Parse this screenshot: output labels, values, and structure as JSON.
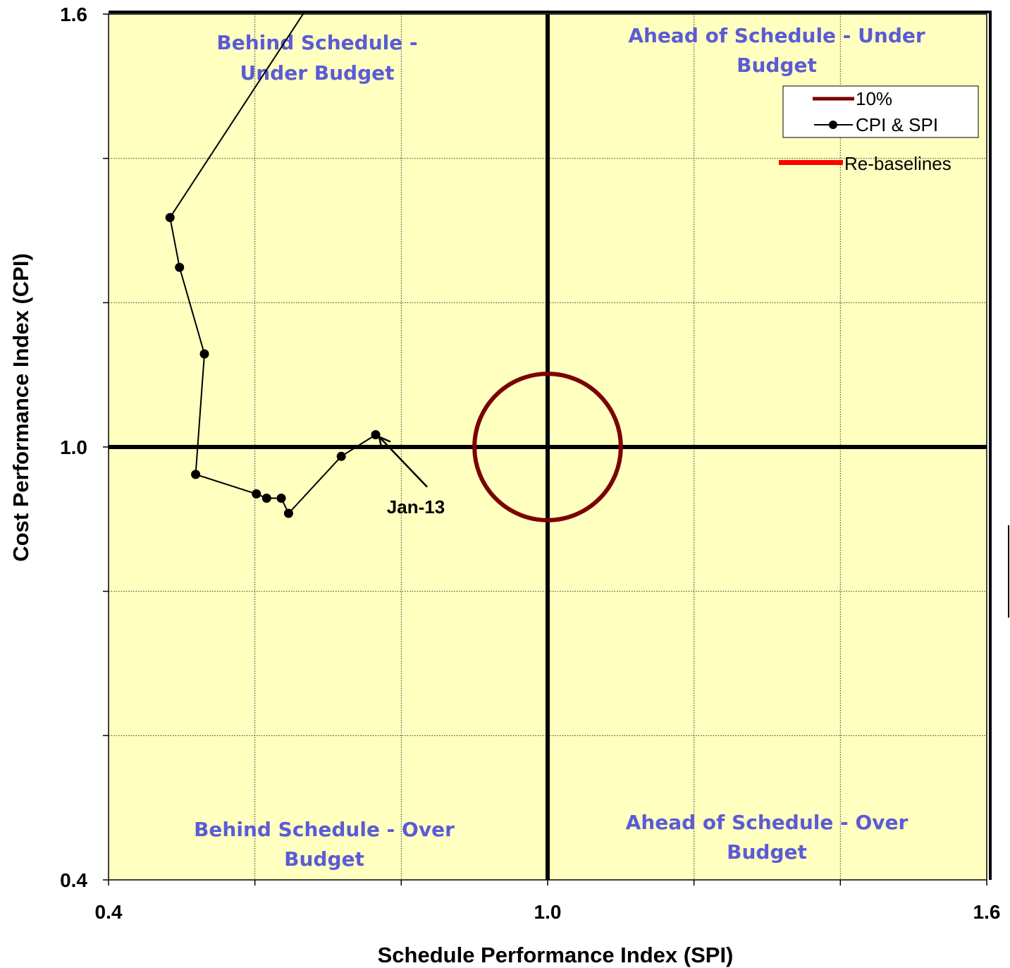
{
  "chart_data": {
    "type": "scatter",
    "xlabel": "Schedule Performance Index (SPI)",
    "ylabel": "Cost Performance Index (CPI)",
    "xlim": [
      0.4,
      1.6
    ],
    "ylim": [
      0.4,
      1.6
    ],
    "x_ticks": [
      "0.4",
      "1.0",
      "1.6"
    ],
    "y_ticks": [
      "0.4",
      "1.0",
      "1.6"
    ],
    "grid": true,
    "background_color": "#ffffc0",
    "quadrant_labels": {
      "top_left": [
        "Behind Schedule -",
        "Under Budget"
      ],
      "top_right": [
        "Ahead of Schedule - Under",
        "Budget"
      ],
      "bottom_left": [
        "Behind Schedule - Over",
        "Budget"
      ],
      "bottom_right": [
        "Ahead of Schedule - Over",
        "Budget"
      ]
    },
    "series": [
      {
        "name": "CPI & SPI",
        "color": "#000000",
        "points": [
          {
            "x": 0.667,
            "y": 1.602
          },
          {
            "x": 0.484,
            "y": 1.318
          },
          {
            "x": 0.497,
            "y": 1.249
          },
          {
            "x": 0.531,
            "y": 1.129
          },
          {
            "x": 0.519,
            "y": 0.962
          },
          {
            "x": 0.602,
            "y": 0.935
          },
          {
            "x": 0.616,
            "y": 0.929
          },
          {
            "x": 0.636,
            "y": 0.929
          },
          {
            "x": 0.646,
            "y": 0.908
          },
          {
            "x": 0.718,
            "y": 0.987
          },
          {
            "x": 0.765,
            "y": 1.017
          }
        ]
      }
    ],
    "threshold_circle": {
      "name": "10%",
      "center": [
        1.0,
        1.0
      ],
      "radius": 0.1,
      "color": "#7b0000"
    },
    "legend": {
      "position": "top-right",
      "entries": [
        "10%",
        "CPI & SPI"
      ],
      "extra_entry": {
        "label": "Re-baselines",
        "color": "#ff0000"
      }
    },
    "annotation": {
      "text": "Jan-13",
      "points_to": {
        "x": 0.765,
        "y": 1.017
      }
    }
  }
}
